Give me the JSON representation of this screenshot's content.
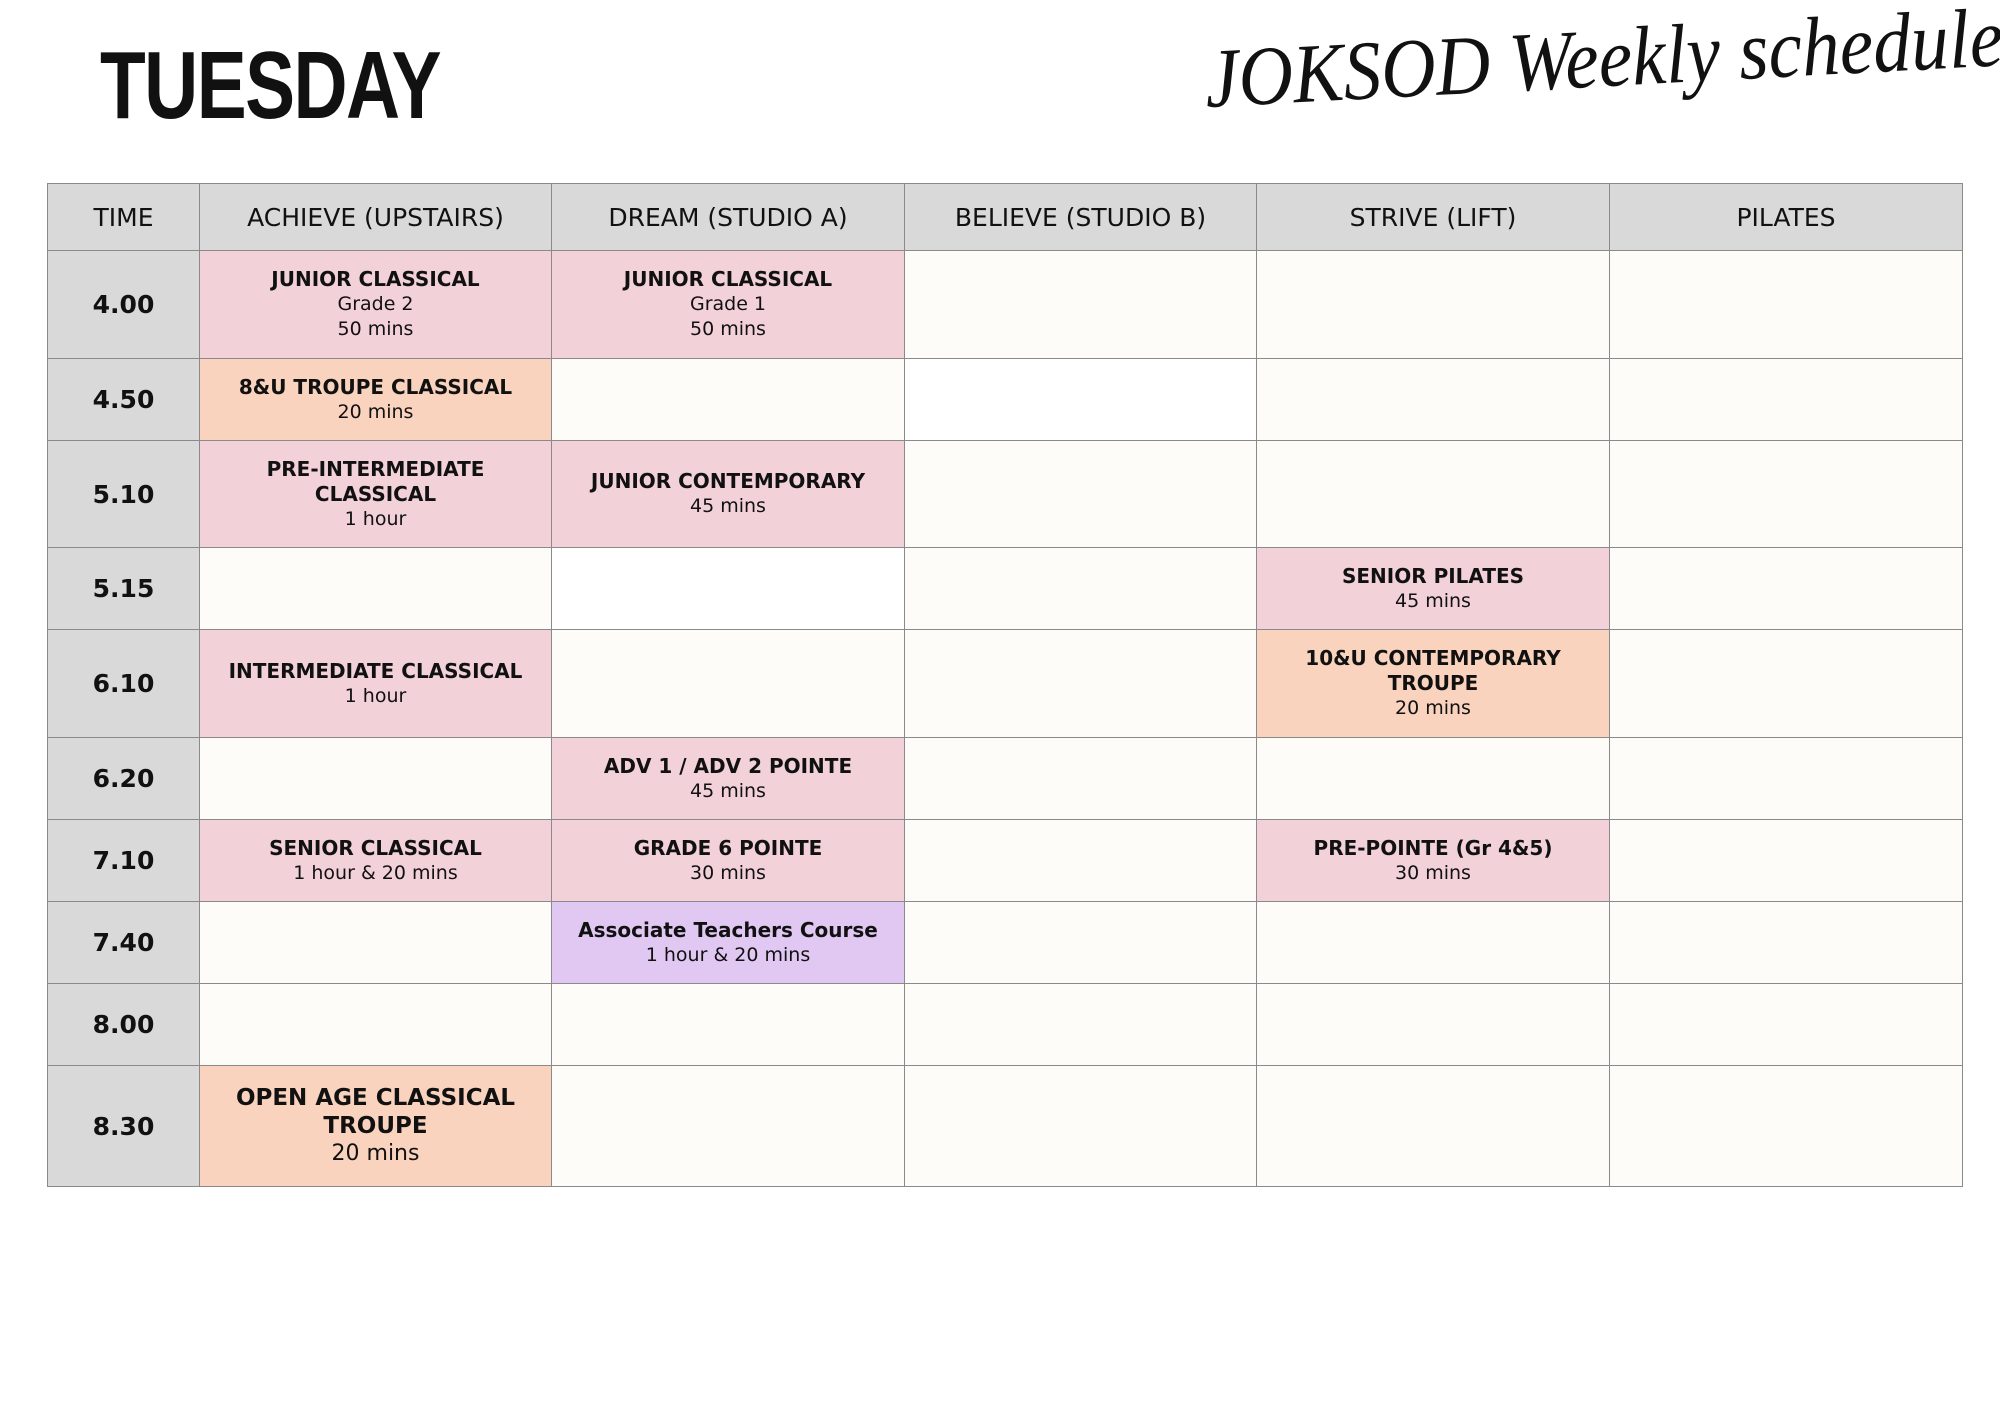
{
  "day": "TUESDAY",
  "brand": "JOKSOD Weekly schedule",
  "colors": {
    "header": "#d9d9d9",
    "classical": "#f2d1d9",
    "troupe": "#f9d3bd",
    "teachers": "#e0c8f3",
    "empty": "#fdfcf8",
    "white": "#ffffff"
  },
  "headers": [
    "TIME",
    "ACHIEVE (UPSTAIRS)",
    "DREAM (STUDIO A)",
    "BELIEVE (STUDIO B)",
    "STRIVE (LIFT)",
    "PILATES"
  ],
  "rows": [
    {
      "time": "4.00",
      "cells": [
        {
          "title": "JUNIOR CLASSICAL",
          "lines": [
            "Grade 2",
            "50 mins"
          ],
          "color": "classical"
        },
        {
          "title": "JUNIOR CLASSICAL",
          "lines": [
            "Grade 1",
            "50 mins"
          ],
          "color": "classical"
        },
        null,
        null,
        null
      ]
    },
    {
      "time": "4.50",
      "cells": [
        {
          "title": "8&U TROUPE CLASSICAL",
          "lines": [
            "20 mins"
          ],
          "color": "troupe"
        },
        null,
        {
          "color": "white"
        },
        null,
        null
      ]
    },
    {
      "time": "5.10",
      "cells": [
        {
          "title": "PRE-INTERMEDIATE CLASSICAL",
          "lines": [
            "1 hour"
          ],
          "color": "classical"
        },
        {
          "title": "JUNIOR CONTEMPORARY",
          "lines": [
            "45 mins"
          ],
          "color": "classical"
        },
        null,
        null,
        null
      ]
    },
    {
      "time": "5.15",
      "cells": [
        null,
        {
          "color": "white"
        },
        null,
        {
          "title": "SENIOR PILATES",
          "lines": [
            "45 mins"
          ],
          "color": "classical"
        },
        null
      ]
    },
    {
      "time": "6.10",
      "cells": [
        {
          "title": "INTERMEDIATE CLASSICAL",
          "lines": [
            "1 hour"
          ],
          "color": "classical"
        },
        null,
        null,
        {
          "title": "10&U CONTEMPORARY TROUPE",
          "lines": [
            "20 mins"
          ],
          "color": "troupe"
        },
        null
      ]
    },
    {
      "time": "6.20",
      "cells": [
        null,
        {
          "title": "ADV 1 / ADV 2 POINTE",
          "lines": [
            "45 mins"
          ],
          "color": "classical"
        },
        null,
        null,
        null
      ]
    },
    {
      "time": "7.10",
      "cells": [
        {
          "title": "SENIOR CLASSICAL",
          "lines": [
            "1 hour & 20 mins"
          ],
          "color": "classical"
        },
        {
          "title": "GRADE 6 POINTE",
          "lines": [
            "30 mins"
          ],
          "color": "classical"
        },
        null,
        {
          "title": "PRE-POINTE (Gr 4&5)",
          "lines": [
            "30 mins"
          ],
          "color": "classical"
        },
        null
      ]
    },
    {
      "time": "7.40",
      "cells": [
        null,
        {
          "title": "Associate Teachers Course",
          "lines": [
            "1 hour & 20 mins"
          ],
          "color": "teachers"
        },
        null,
        null,
        null
      ]
    },
    {
      "time": "8.00",
      "cells": [
        null,
        null,
        null,
        null,
        null
      ]
    },
    {
      "time": "8.30",
      "big": true,
      "cells": [
        {
          "title": "OPEN AGE CLASSICAL TROUPE",
          "lines": [
            "20 mins"
          ],
          "color": "troupe"
        },
        null,
        null,
        null,
        null
      ]
    }
  ]
}
